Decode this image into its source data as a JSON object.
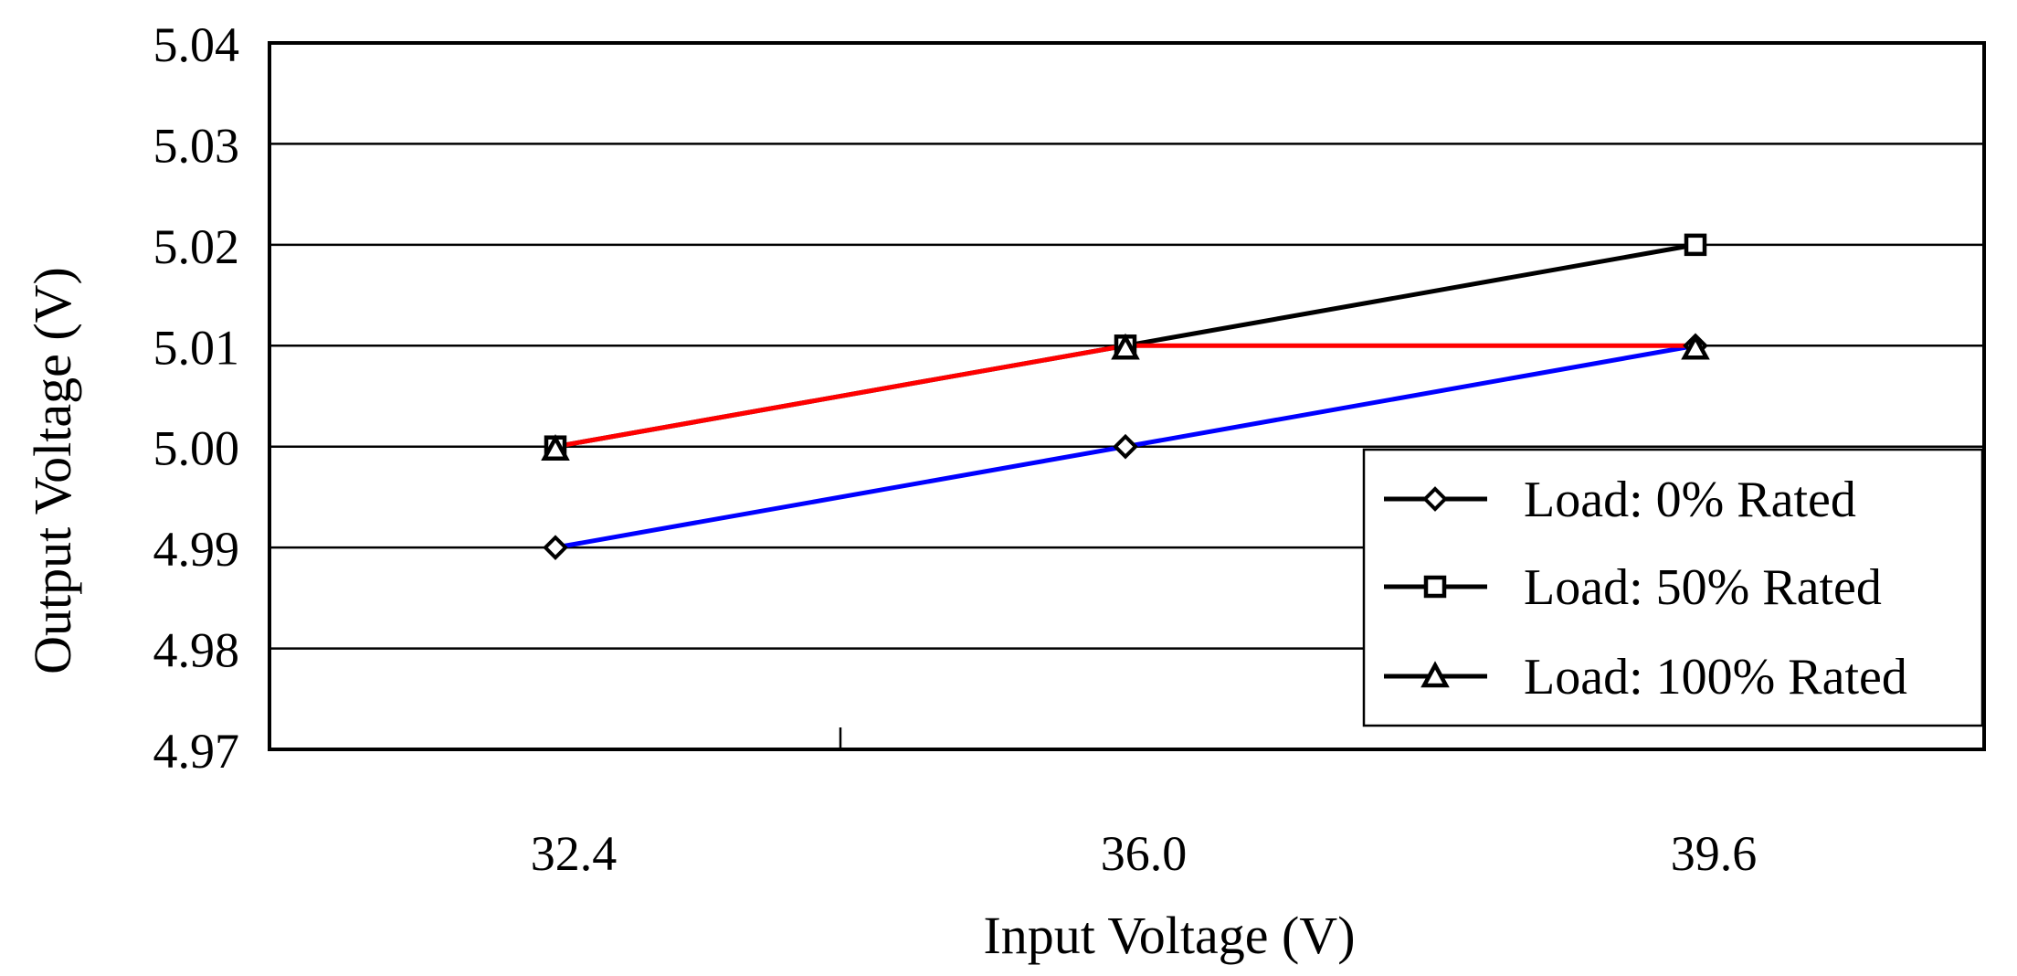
{
  "chart_data": {
    "type": "line",
    "title": "",
    "xlabel": "Input Voltage (V)",
    "ylabel": "Output Voltage (V)",
    "categories": [
      "32.4",
      "36.0",
      "39.6"
    ],
    "ylim": [
      4.97,
      5.04
    ],
    "yticks": [
      "5.04",
      "5.03",
      "5.02",
      "5.01",
      "5.00",
      "4.99",
      "4.98",
      "4.97"
    ],
    "grid": true,
    "legend_position": "bottom-right",
    "series": [
      {
        "name": "Load: 0% Rated",
        "marker": "diamond",
        "color": "#0000ff",
        "values": [
          4.99,
          5.0,
          5.01
        ]
      },
      {
        "name": "Load: 50% Rated",
        "marker": "square",
        "color": "#000000",
        "values": [
          5.0,
          5.01,
          5.02
        ]
      },
      {
        "name": "Load: 100% Rated",
        "marker": "triangle",
        "color": "#ff0000",
        "values": [
          5.0,
          5.01,
          5.01
        ]
      }
    ]
  }
}
